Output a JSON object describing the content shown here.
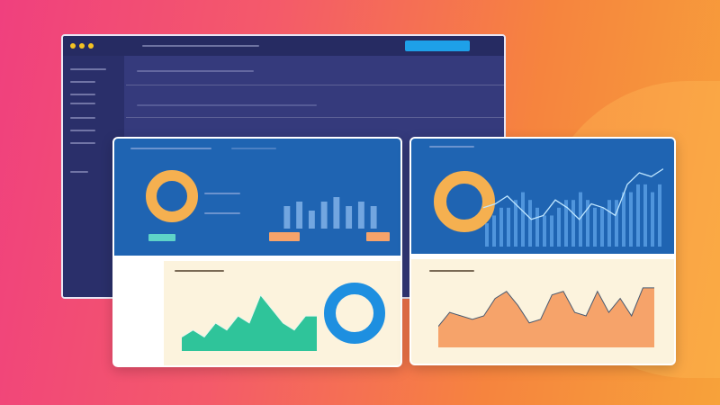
{
  "colors": {
    "background_left": "#f0407e",
    "background_right": "#f7a23a",
    "window": "#353a7c",
    "panel_blue": "#1f64b2",
    "panel_cream": "#fcf3dd",
    "accent_yellow": "#f5b050",
    "accent_green": "#2fc49a",
    "accent_blue": "#1e8fe0",
    "accent_orange": "#f6a36a",
    "button": "#1ea0e8"
  },
  "icons": [
    "window-dot-icon",
    "search-icon",
    "gear-icon",
    "donut-chart-icon",
    "bar-chart-icon",
    "line-chart-icon",
    "area-chart-icon"
  ],
  "left_card": {
    "bars": [
      5,
      6,
      4,
      6,
      7,
      5,
      6,
      5
    ],
    "area_series": [
      2,
      3,
      2,
      4,
      3,
      5,
      4,
      8,
      6,
      4,
      3,
      5,
      5
    ],
    "donut_fraction": 0.8
  },
  "right_card": {
    "bars": [
      3,
      4,
      5,
      5,
      6,
      7,
      6,
      5,
      4,
      4,
      5,
      6,
      6,
      7,
      6,
      5,
      5,
      6,
      6,
      7,
      7,
      8,
      8,
      7,
      8
    ],
    "line_series": [
      5,
      5.5,
      6.5,
      5,
      3.5,
      4,
      6,
      5,
      3.5,
      5.5,
      5,
      4,
      8,
      9.5,
      9,
      10
    ],
    "area_series": [
      3,
      5,
      4.5,
      4,
      4.5,
      7,
      8,
      6,
      3.5,
      4,
      7.5,
      8,
      5,
      4.5,
      8,
      5,
      7,
      4.5,
      8.5,
      8.5
    ]
  }
}
